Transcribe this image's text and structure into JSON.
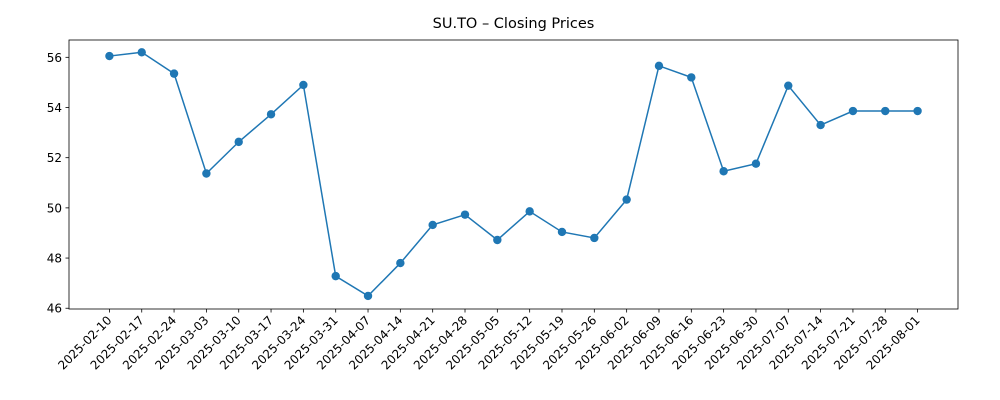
{
  "chart_data": {
    "type": "line",
    "title": "SU.TO – Closing Prices",
    "xlabel": "",
    "ylabel": "",
    "categories": [
      "2025-02-10",
      "2025-02-17",
      "2025-02-24",
      "2025-03-03",
      "2025-03-10",
      "2025-03-17",
      "2025-03-24",
      "2025-03-31",
      "2025-04-07",
      "2025-04-14",
      "2025-04-21",
      "2025-04-28",
      "2025-05-05",
      "2025-05-12",
      "2025-05-19",
      "2025-05-26",
      "2025-06-02",
      "2025-06-09",
      "2025-06-16",
      "2025-06-23",
      "2025-06-30",
      "2025-07-07",
      "2025-07-14",
      "2025-07-21",
      "2025-07-28",
      "2025-08-01"
    ],
    "series": [
      {
        "values": [
          56.05,
          56.2,
          55.35,
          51.37,
          52.63,
          53.73,
          54.9,
          47.28,
          46.49,
          47.8,
          49.32,
          49.73,
          48.72,
          49.86,
          49.04,
          48.8,
          50.33,
          55.66,
          55.2,
          51.46,
          51.76,
          54.87,
          53.3,
          53.86,
          53.86,
          53.86
        ],
        "color": "#1f77b4"
      }
    ],
    "ylim": [
      45.97,
      56.69
    ],
    "yticks": [
      46,
      48,
      50,
      52,
      54,
      56
    ],
    "ytick_labels": [
      "46",
      "48",
      "50",
      "52",
      "54",
      "56"
    ],
    "grid": false,
    "legend": "none",
    "marker": "circle"
  }
}
